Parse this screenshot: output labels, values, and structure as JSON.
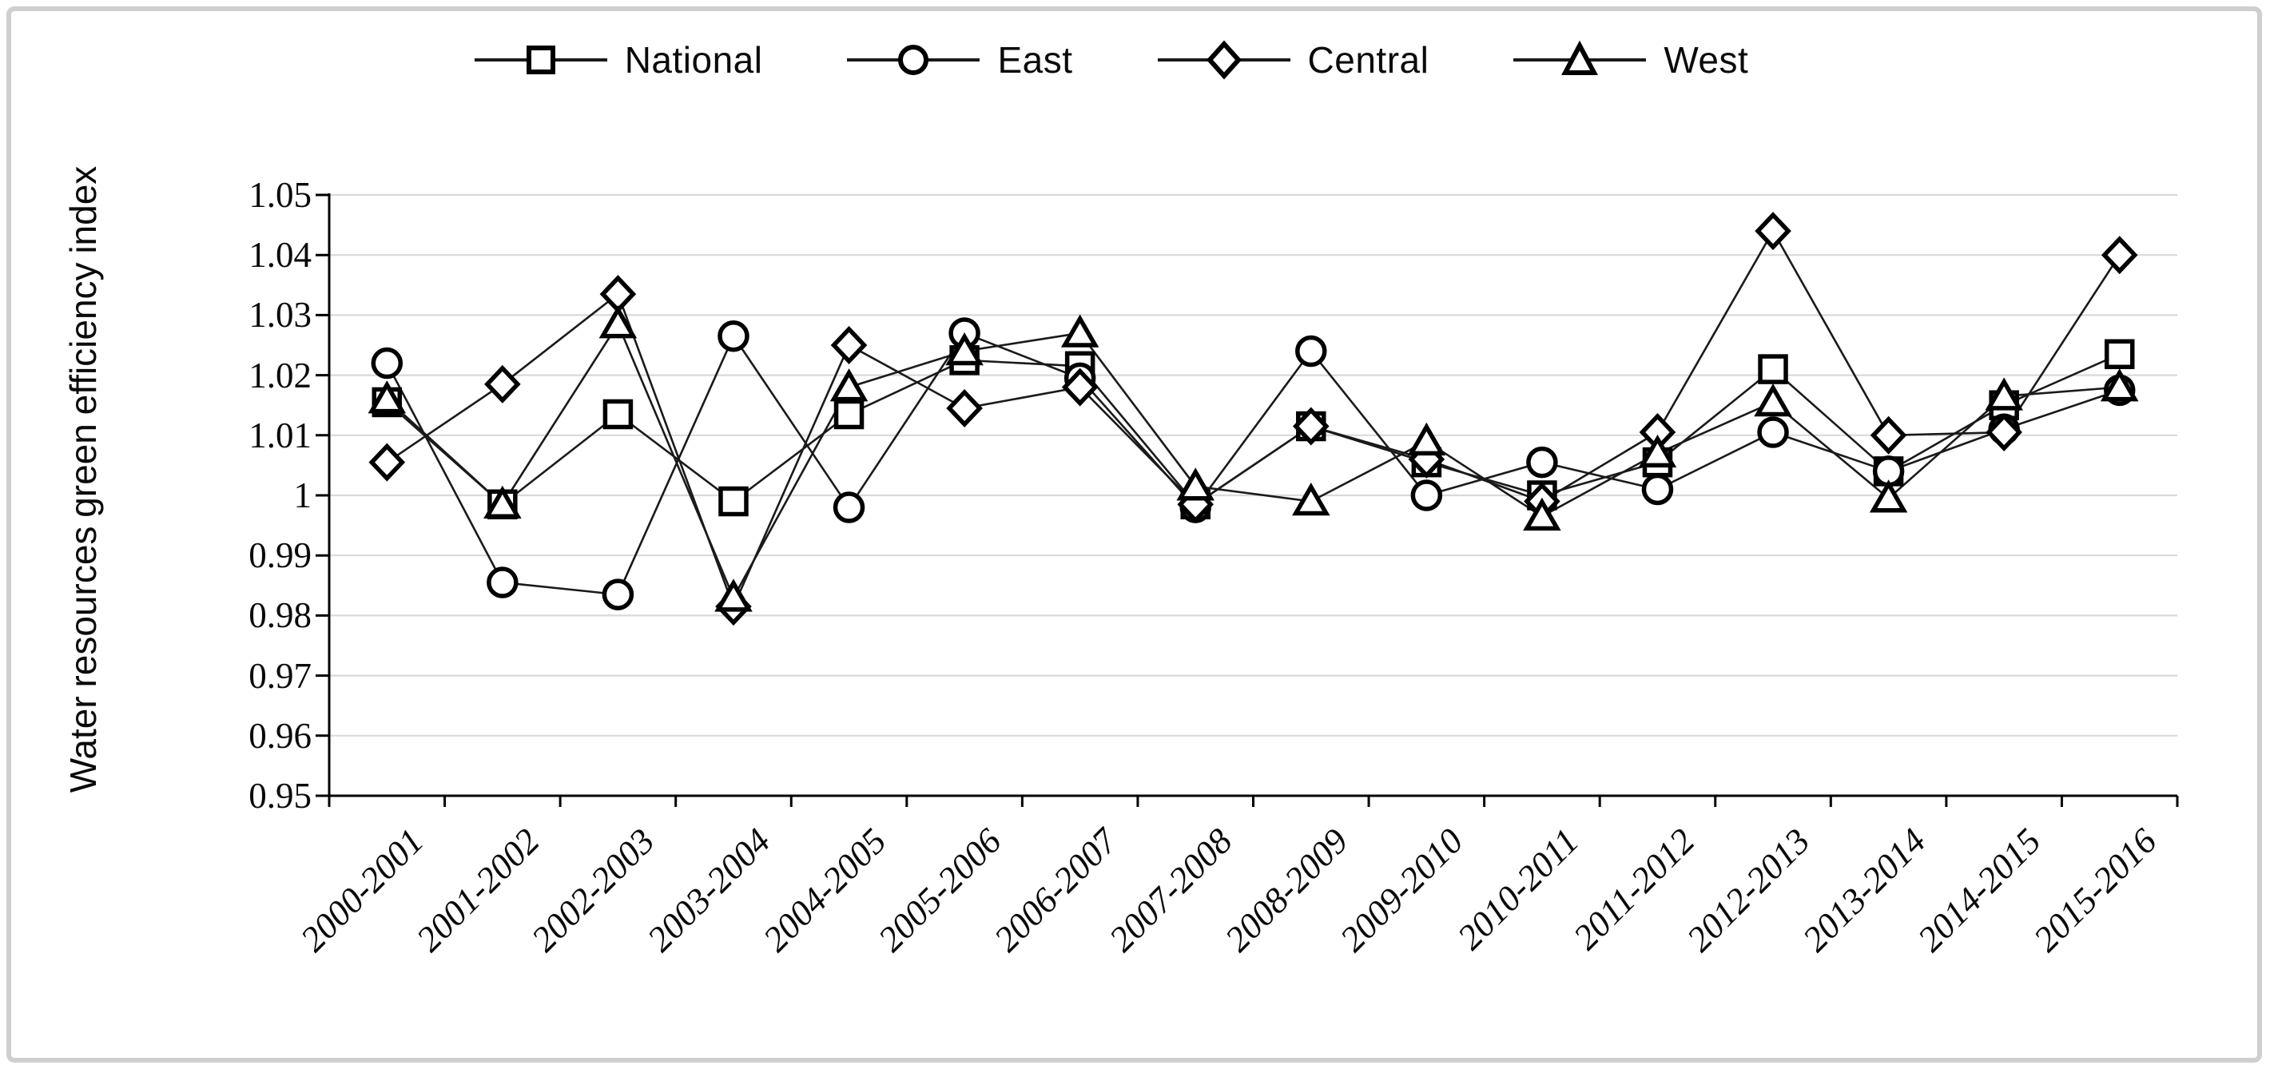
{
  "figure": {
    "y_tick_labels": [
      "1.05",
      "1.04",
      "1.03",
      "1.02",
      "1.01",
      "1",
      "0.99",
      "0.98",
      "0.97",
      "0.96",
      "0.95"
    ]
  },
  "chart_data": {
    "type": "line",
    "title": "",
    "xlabel": "",
    "ylabel": "Water resources green efficiency index",
    "ylim": [
      0.95,
      1.05
    ],
    "y_tick_step": 0.01,
    "grid": "horizontal-light-gray",
    "legend_position": "top-center",
    "line_color": "#1a1a1a",
    "marker_fill": "#ffffff",
    "gridline_color": "#d9d9d9",
    "categories": [
      "2000-2001",
      "2001-2002",
      "2002-2003",
      "2003-2004",
      "2004-2005",
      "2005-2006",
      "2006-2007",
      "2007-2008",
      "2008-2009",
      "2009-2010",
      "2010-2011",
      "2011-2012",
      "2012-2013",
      "2013-2014",
      "2014-2015",
      "2015-2016"
    ],
    "series": [
      {
        "name": "National",
        "marker": "square",
        "values": [
          1.0155,
          0.9985,
          1.0135,
          0.999,
          1.0135,
          1.0225,
          1.0215,
          0.9985,
          1.0115,
          1.0055,
          1.0,
          1.0055,
          1.021,
          1.004,
          1.015,
          1.0235
        ]
      },
      {
        "name": "East",
        "marker": "circle",
        "values": [
          1.022,
          0.9855,
          0.9835,
          1.0265,
          0.998,
          1.027,
          1.0195,
          0.998,
          1.024,
          1.0,
          1.0055,
          1.001,
          1.0105,
          1.004,
          1.011,
          1.0175
        ]
      },
      {
        "name": "Central",
        "marker": "diamond",
        "values": [
          1.0055,
          1.0185,
          1.0335,
          0.9815,
          1.025,
          1.0145,
          1.018,
          0.9985,
          1.0115,
          1.006,
          0.999,
          1.0105,
          1.044,
          1.01,
          1.0105,
          1.04
        ]
      },
      {
        "name": "West",
        "marker": "triangle",
        "values": [
          1.016,
          0.9985,
          1.0285,
          0.983,
          1.018,
          1.024,
          1.027,
          1.0015,
          0.999,
          1.009,
          0.9965,
          1.007,
          1.0155,
          0.9995,
          1.0165,
          1.018
        ]
      }
    ]
  }
}
